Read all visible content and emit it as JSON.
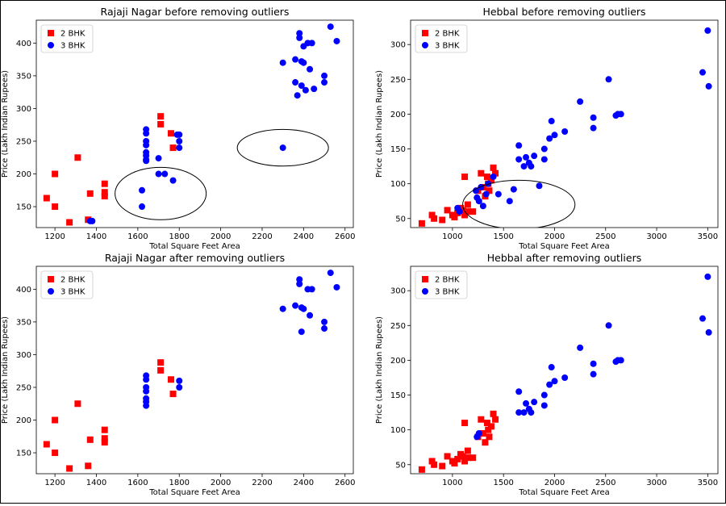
{
  "colors": {
    "two_bhk": "#ff0000",
    "three_bhk": "#0000ff"
  },
  "chart_data": [
    {
      "type": "scatter",
      "title": "Rajaji Nagar before removing outliers",
      "xlabel": "Total Square Feet Area",
      "ylabel": "Price (Lakh Indian Rupees)",
      "xlim": [
        1110,
        2640
      ],
      "ylim": [
        118,
        435
      ],
      "xticks": [
        1200,
        1400,
        1600,
        1800,
        2000,
        2200,
        2400,
        2600
      ],
      "yticks": [
        150,
        200,
        250,
        300,
        350,
        400
      ],
      "legend": "top-left",
      "series": [
        {
          "name": "2 BHK",
          "marker": "square",
          "color": "#ff0000",
          "x": [
            1160,
            1200,
            1200,
            1270,
            1310,
            1360,
            1370,
            1440,
            1440,
            1440,
            1710,
            1710,
            1760,
            1770
          ],
          "y": [
            163,
            150,
            200,
            126,
            225,
            130,
            170,
            185,
            172,
            166,
            288,
            276,
            262,
            240
          ]
        },
        {
          "name": "3 BHK",
          "marker": "circle",
          "color": "#0000ff",
          "x": [
            1370,
            1380,
            1620,
            1620,
            1640,
            1640,
            1640,
            1640,
            1640,
            1640,
            1640,
            1640,
            1700,
            1700,
            1730,
            1770,
            1790,
            1800,
            1800,
            1800,
            2300,
            2300,
            2360,
            2360,
            2370,
            2380,
            2380,
            2390,
            2390,
            2400,
            2400,
            2410,
            2420,
            2430,
            2440,
            2450,
            2500,
            2500,
            2530,
            2560
          ],
          "y": [
            128,
            128,
            150,
            175,
            268,
            262,
            250,
            244,
            233,
            228,
            222,
            220,
            224,
            200,
            200,
            190,
            260,
            250,
            240,
            260,
            370,
            240,
            375,
            340,
            320,
            415,
            408,
            372,
            335,
            370,
            395,
            328,
            400,
            360,
            400,
            330,
            350,
            340,
            425,
            403
          ]
        }
      ]
    },
    {
      "type": "scatter",
      "title": "Hebbal before removing outliers",
      "xlabel": "Total Square Feet Area",
      "ylabel": "Price (Lakh Indian Rupees)",
      "xlim": [
        590,
        3600
      ],
      "ylim": [
        37,
        335
      ],
      "xticks": [
        1000,
        1500,
        2000,
        2500,
        3000,
        3500
      ],
      "yticks": [
        50,
        100,
        150,
        200,
        250,
        300
      ],
      "legend": "top-left",
      "series": [
        {
          "name": "2 BHK",
          "marker": "square",
          "color": "#ff0000",
          "x": [
            700,
            800,
            820,
            900,
            950,
            1000,
            1020,
            1050,
            1080,
            1100,
            1120,
            1150,
            1150,
            1200,
            1250,
            1280,
            1300,
            1320,
            1340,
            1350,
            1360,
            1380,
            1400,
            1420,
            1120
          ],
          "y": [
            43,
            55,
            50,
            48,
            62,
            55,
            52,
            58,
            65,
            62,
            55,
            60,
            70,
            60,
            90,
            115,
            95,
            82,
            110,
            100,
            90,
            105,
            123,
            115,
            110
          ]
        },
        {
          "name": "3 BHK",
          "marker": "circle",
          "color": "#0000ff",
          "x": [
            1050,
            1070,
            1230,
            1240,
            1260,
            1280,
            1300,
            1330,
            1350,
            1400,
            1450,
            1560,
            1600,
            1650,
            1650,
            1700,
            1720,
            1750,
            1770,
            1800,
            1850,
            1900,
            1900,
            1950,
            1970,
            2000,
            2100,
            2250,
            2380,
            2380,
            2530,
            2600,
            2620,
            2650,
            3450,
            3500,
            3510
          ],
          "y": [
            65,
            60,
            90,
            80,
            75,
            95,
            68,
            85,
            100,
            110,
            85,
            75,
            92,
            155,
            135,
            125,
            138,
            130,
            125,
            140,
            97,
            150,
            135,
            165,
            190,
            170,
            175,
            218,
            195,
            180,
            250,
            198,
            200,
            200,
            260,
            320,
            240
          ]
        }
      ],
      "annotations": []
    },
    {
      "type": "scatter",
      "title": "Rajaji Nagar after removing outliers",
      "xlabel": "Total Square Feet Area",
      "ylabel": "Price (Lakh Indian Rupees)",
      "xlim": [
        1110,
        2640
      ],
      "ylim": [
        118,
        435
      ],
      "xticks": [
        1200,
        1400,
        1600,
        1800,
        2000,
        2200,
        2400,
        2600
      ],
      "yticks": [
        150,
        200,
        250,
        300,
        350,
        400
      ],
      "legend": "top-left",
      "series": [
        {
          "name": "2 BHK",
          "marker": "square",
          "color": "#ff0000",
          "x": [
            1160,
            1200,
            1200,
            1270,
            1310,
            1360,
            1370,
            1440,
            1440,
            1440,
            1710,
            1710,
            1760,
            1770
          ],
          "y": [
            163,
            150,
            200,
            126,
            225,
            130,
            170,
            185,
            172,
            166,
            288,
            276,
            262,
            240
          ]
        },
        {
          "name": "3 BHK",
          "marker": "circle",
          "color": "#0000ff",
          "x": [
            1640,
            1640,
            1640,
            1640,
            1640,
            1640,
            1640,
            1800,
            1800,
            2300,
            2360,
            2380,
            2380,
            2390,
            2390,
            2400,
            2420,
            2430,
            2440,
            2500,
            2500,
            2530,
            2560
          ],
          "y": [
            268,
            262,
            250,
            244,
            233,
            228,
            222,
            260,
            250,
            370,
            375,
            415,
            408,
            372,
            335,
            370,
            400,
            360,
            400,
            350,
            340,
            425,
            403
          ]
        }
      ]
    },
    {
      "type": "scatter",
      "title": "Hebbal after removing outliers",
      "xlabel": "Total Square Feet Area",
      "ylabel": "Price (Lakh Indian Rupees)",
      "xlim": [
        590,
        3600
      ],
      "ylim": [
        37,
        335
      ],
      "xticks": [
        1000,
        1500,
        2000,
        2500,
        3000,
        3500
      ],
      "yticks": [
        50,
        100,
        150,
        200,
        250,
        300
      ],
      "legend": "top-left",
      "series": [
        {
          "name": "2 BHK",
          "marker": "square",
          "color": "#ff0000",
          "x": [
            700,
            800,
            820,
            900,
            950,
            1000,
            1020,
            1050,
            1080,
            1100,
            1120,
            1150,
            1150,
            1200,
            1250,
            1280,
            1300,
            1320,
            1340,
            1350,
            1360,
            1380,
            1400,
            1420,
            1120
          ],
          "y": [
            43,
            55,
            50,
            48,
            62,
            55,
            52,
            58,
            65,
            62,
            55,
            60,
            70,
            60,
            90,
            115,
            95,
            82,
            110,
            100,
            90,
            105,
            123,
            115,
            110
          ]
        },
        {
          "name": "3 BHK",
          "marker": "circle",
          "color": "#0000ff",
          "x": [
            1240,
            1260,
            1650,
            1650,
            1700,
            1720,
            1750,
            1770,
            1800,
            1900,
            1900,
            1950,
            1970,
            2000,
            2100,
            2250,
            2380,
            2380,
            2530,
            2600,
            2620,
            2650,
            3450,
            3500,
            3510
          ],
          "y": [
            90,
            95,
            155,
            125,
            125,
            138,
            130,
            125,
            140,
            150,
            135,
            165,
            190,
            170,
            175,
            218,
            195,
            180,
            250,
            198,
            200,
            200,
            260,
            320,
            240
          ]
        }
      ]
    }
  ],
  "outlier_ellipses": [
    {
      "chart": 0,
      "cx": 1710,
      "cy": 170,
      "rx": 220,
      "ry": 40
    },
    {
      "chart": 0,
      "cx": 2300,
      "cy": 240,
      "rx": 220,
      "ry": 28
    },
    {
      "chart": 1,
      "cx": 1650,
      "cy": 70,
      "rx": 550,
      "ry": 35
    }
  ]
}
